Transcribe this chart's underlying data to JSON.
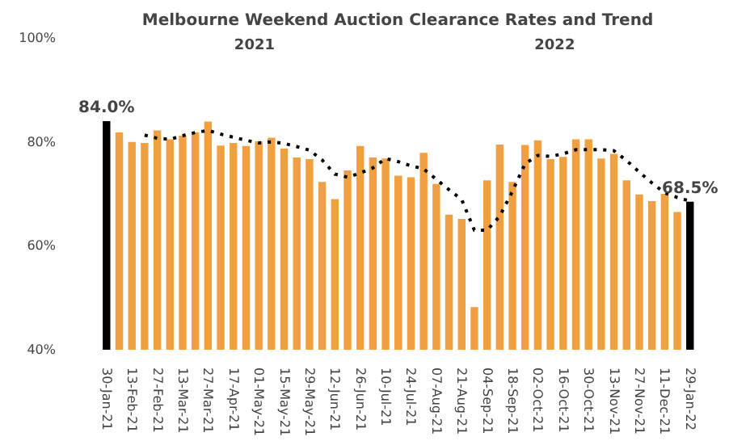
{
  "chart_data": {
    "type": "bar",
    "title": "Melbourne Weekend Auction Clearance Rates and Trend",
    "annotations": [
      "2021",
      "2022"
    ],
    "categories": [
      "30-Jan-21",
      null,
      "13-Feb-21",
      null,
      "27-Feb-21",
      null,
      "13-Mar-21",
      null,
      "27-Mar-21",
      null,
      "17-Apr-21",
      null,
      "01-May-21",
      null,
      "15-May-21",
      null,
      "29-May-21",
      null,
      "12-Jun-21",
      null,
      "26-Jun-21",
      null,
      "10-Jul-21",
      null,
      "24-Jul-21",
      null,
      "07-Aug-21",
      null,
      "21-Aug-21",
      null,
      "04-Sep-21",
      null,
      "18-Sep-21",
      null,
      "02-Oct-21",
      null,
      "16-Oct-21",
      null,
      "30-Oct-21",
      null,
      "13-Nov-21",
      null,
      "27-Nov-21",
      null,
      "11-Dec-21",
      null,
      "29-Jan-22"
    ],
    "series": [
      {
        "values": [
          84.0,
          81.8,
          80.0,
          79.8,
          82.2,
          80.5,
          81.2,
          81.8,
          83.9,
          79.3,
          79.8,
          79.2,
          80.1,
          80.8,
          78.7,
          77.0,
          76.7,
          72.3,
          69.0,
          74.5,
          79.2,
          77.0,
          76.8,
          73.5,
          73.2,
          77.9,
          71.9,
          66.0,
          65.2,
          48.2,
          72.6,
          79.5,
          72.3,
          79.4,
          80.3,
          76.7,
          77.1,
          80.5,
          80.5,
          76.8,
          77.7,
          72.6,
          69.9,
          68.6,
          70.0,
          66.5,
          68.5
        ],
        "colors": [
          "#000000",
          "#f0a040",
          "#f0a040",
          "#f0a040",
          "#f0a040",
          "#f0a040",
          "#f0a040",
          "#f0a040",
          "#f0a040",
          "#f0a040",
          "#f0a040",
          "#f0a040",
          "#f0a040",
          "#f0a040",
          "#f0a040",
          "#f0a040",
          "#f0a040",
          "#f0a040",
          "#f0a040",
          "#f0a040",
          "#f0a040",
          "#f0a040",
          "#f0a040",
          "#f0a040",
          "#f0a040",
          "#f0a040",
          "#f0a040",
          "#f0a040",
          "#f0a040",
          "#f0a040",
          "#f0a040",
          "#f0a040",
          "#f0a040",
          "#f0a040",
          "#f0a040",
          "#f0a040",
          "#f0a040",
          "#f0a040",
          "#f0a040",
          "#f0a040",
          "#f0a040",
          "#f0a040",
          "#f0a040",
          "#f0a040",
          "#f0a040",
          "#f0a040",
          "#000000"
        ],
        "value_labels": [
          "84.0%",
          null,
          null,
          null,
          null,
          null,
          null,
          null,
          null,
          null,
          null,
          null,
          null,
          null,
          null,
          null,
          null,
          null,
          null,
          null,
          null,
          null,
          null,
          null,
          null,
          null,
          null,
          null,
          null,
          null,
          null,
          null,
          null,
          null,
          null,
          null,
          null,
          null,
          null,
          null,
          null,
          null,
          null,
          null,
          null,
          null,
          "68.5%"
        ]
      },
      {
        "type": "line",
        "color": "#000000",
        "line_style": "dotted",
        "values": [
          null,
          null,
          null,
          81.3,
          80.7,
          80.5,
          81.2,
          81.8,
          82.2,
          81.5,
          80.9,
          80.3,
          79.8,
          80.0,
          79.7,
          79.1,
          78.4,
          76.5,
          73.8,
          73.2,
          74.0,
          75.0,
          76.8,
          76.2,
          75.4,
          74.8,
          72.8,
          70.8,
          68.9,
          63.0,
          63.0,
          65.7,
          70.5,
          75.8,
          77.4,
          77.2,
          77.7,
          78.5,
          78.5,
          78.5,
          78.3,
          76.4,
          74.2,
          72.1,
          70.2,
          69.3,
          68.6
        ]
      }
    ],
    "ylim": [
      40,
      100
    ],
    "yticks": [
      {
        "value": 40,
        "label": "40%"
      },
      {
        "value": 60,
        "label": "60%"
      },
      {
        "value": 80,
        "label": "80%"
      },
      {
        "value": 100,
        "label": "100%"
      }
    ],
    "grid": false
  }
}
